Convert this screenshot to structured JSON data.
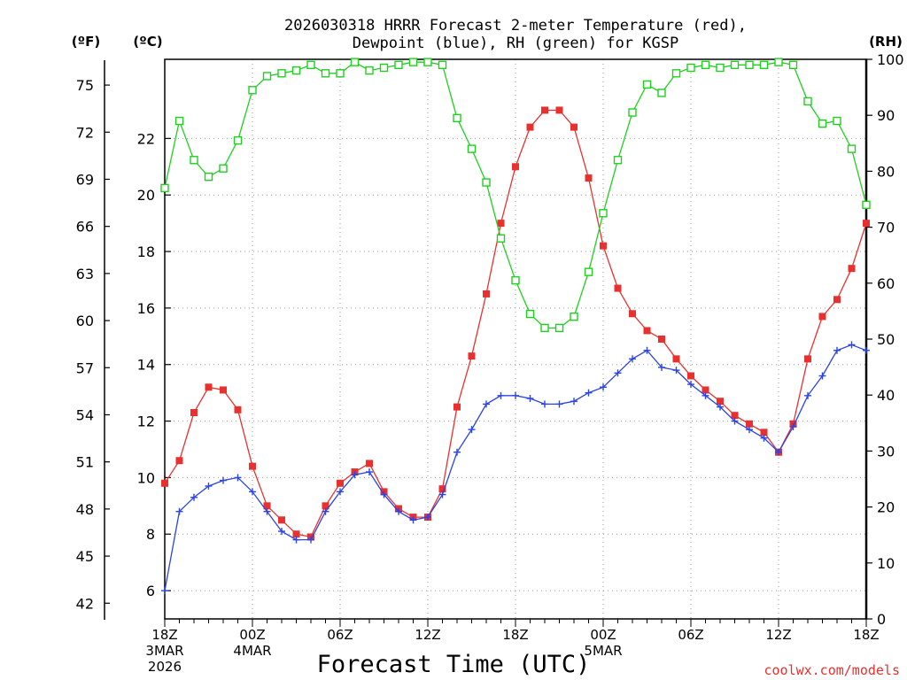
{
  "chart_data": {
    "type": "line",
    "title": [
      "2026030318 HRRR Forecast 2-meter Temperature (red),",
      "Dewpoint (blue), RH (green) for KGSP"
    ],
    "xlabel": "Forecast Time (UTC)",
    "credit": "coolwx.com/models",
    "x_hours": [
      0,
      1,
      2,
      3,
      4,
      5,
      6,
      7,
      8,
      9,
      10,
      11,
      12,
      13,
      14,
      15,
      16,
      17,
      18,
      19,
      20,
      21,
      22,
      23,
      24,
      25,
      26,
      27,
      28,
      29,
      30,
      31,
      32,
      33,
      34,
      35,
      36,
      37,
      38,
      39,
      40,
      41,
      42,
      43,
      44,
      45,
      46,
      47,
      48
    ],
    "x_ticks": [
      {
        "hour": 0,
        "lines": [
          "18Z",
          "3MAR",
          "2026"
        ]
      },
      {
        "hour": 6,
        "lines": [
          "00Z",
          "4MAR"
        ]
      },
      {
        "hour": 12,
        "lines": [
          "06Z"
        ]
      },
      {
        "hour": 18,
        "lines": [
          "12Z"
        ]
      },
      {
        "hour": 24,
        "lines": [
          "18Z"
        ]
      },
      {
        "hour": 30,
        "lines": [
          "00Z",
          "5MAR"
        ]
      },
      {
        "hour": 36,
        "lines": [
          "06Z"
        ]
      },
      {
        "hour": 42,
        "lines": [
          "12Z"
        ]
      },
      {
        "hour": 48,
        "lines": [
          "18Z"
        ]
      }
    ],
    "axes": {
      "celsius": {
        "label": "(ºC)",
        "range": [
          5,
          24.8
        ],
        "ticks": [
          6,
          8,
          10,
          12,
          14,
          16,
          18,
          20,
          22
        ]
      },
      "fahrenheit": {
        "label": "(ºF)",
        "range": [
          41,
          76.64
        ],
        "ticks": [
          42,
          45,
          48,
          51,
          54,
          57,
          60,
          63,
          66,
          69,
          72,
          75
        ]
      },
      "rh": {
        "label": "(RH)",
        "range": [
          0,
          100
        ],
        "ticks": [
          0,
          10,
          20,
          30,
          40,
          50,
          60,
          70,
          80,
          90,
          100
        ]
      }
    },
    "grid": true,
    "series": [
      {
        "name": "Temperature",
        "unit": "C",
        "color": "#e8312f",
        "marker": "filled-square",
        "values": [
          9.8,
          10.6,
          12.3,
          13.2,
          13.1,
          12.4,
          10.4,
          9.0,
          8.5,
          8.0,
          7.9,
          9.0,
          9.8,
          10.2,
          10.5,
          9.5,
          8.9,
          8.6,
          8.6,
          9.6,
          12.5,
          14.3,
          16.5,
          19.0,
          21.0,
          22.4,
          23.0,
          23.0,
          22.4,
          20.6,
          18.2,
          16.7,
          15.8,
          15.2,
          14.9,
          14.2,
          13.6,
          13.1,
          12.7,
          12.2,
          11.9,
          11.6,
          10.9,
          11.9,
          14.2,
          15.7,
          16.3,
          17.4,
          19.0
        ]
      },
      {
        "name": "Dewpoint",
        "unit": "C",
        "color": "#2b44e6",
        "marker": "plus",
        "values": [
          6.0,
          8.8,
          9.3,
          9.7,
          9.9,
          10.0,
          9.5,
          8.8,
          8.1,
          7.8,
          7.8,
          8.8,
          9.5,
          10.1,
          10.2,
          9.4,
          8.8,
          8.5,
          8.6,
          9.4,
          10.9,
          11.7,
          12.6,
          12.9,
          12.9,
          12.8,
          12.6,
          12.6,
          12.7,
          13.0,
          13.2,
          13.7,
          14.2,
          14.5,
          13.9,
          13.8,
          13.3,
          12.9,
          12.5,
          12.0,
          11.7,
          11.4,
          10.9,
          11.8,
          12.9,
          13.6,
          14.5,
          14.7,
          14.5
        ]
      },
      {
        "name": "RH",
        "unit": "%",
        "color": "#1fd11f",
        "marker": "open-square",
        "values": [
          77,
          89,
          82,
          79,
          80.5,
          85.5,
          94.5,
          97,
          97.5,
          98,
          99,
          97.5,
          97.5,
          99.5,
          98,
          98.5,
          99,
          99.5,
          99.5,
          99,
          89.5,
          84,
          78,
          68,
          60.5,
          54.5,
          52,
          52,
          54,
          62,
          72.5,
          82,
          90.5,
          95.5,
          94,
          97.5,
          98.5,
          99,
          98.5,
          99,
          99,
          99,
          99.5,
          99,
          92.5,
          88.5,
          89,
          84,
          74
        ]
      }
    ]
  }
}
